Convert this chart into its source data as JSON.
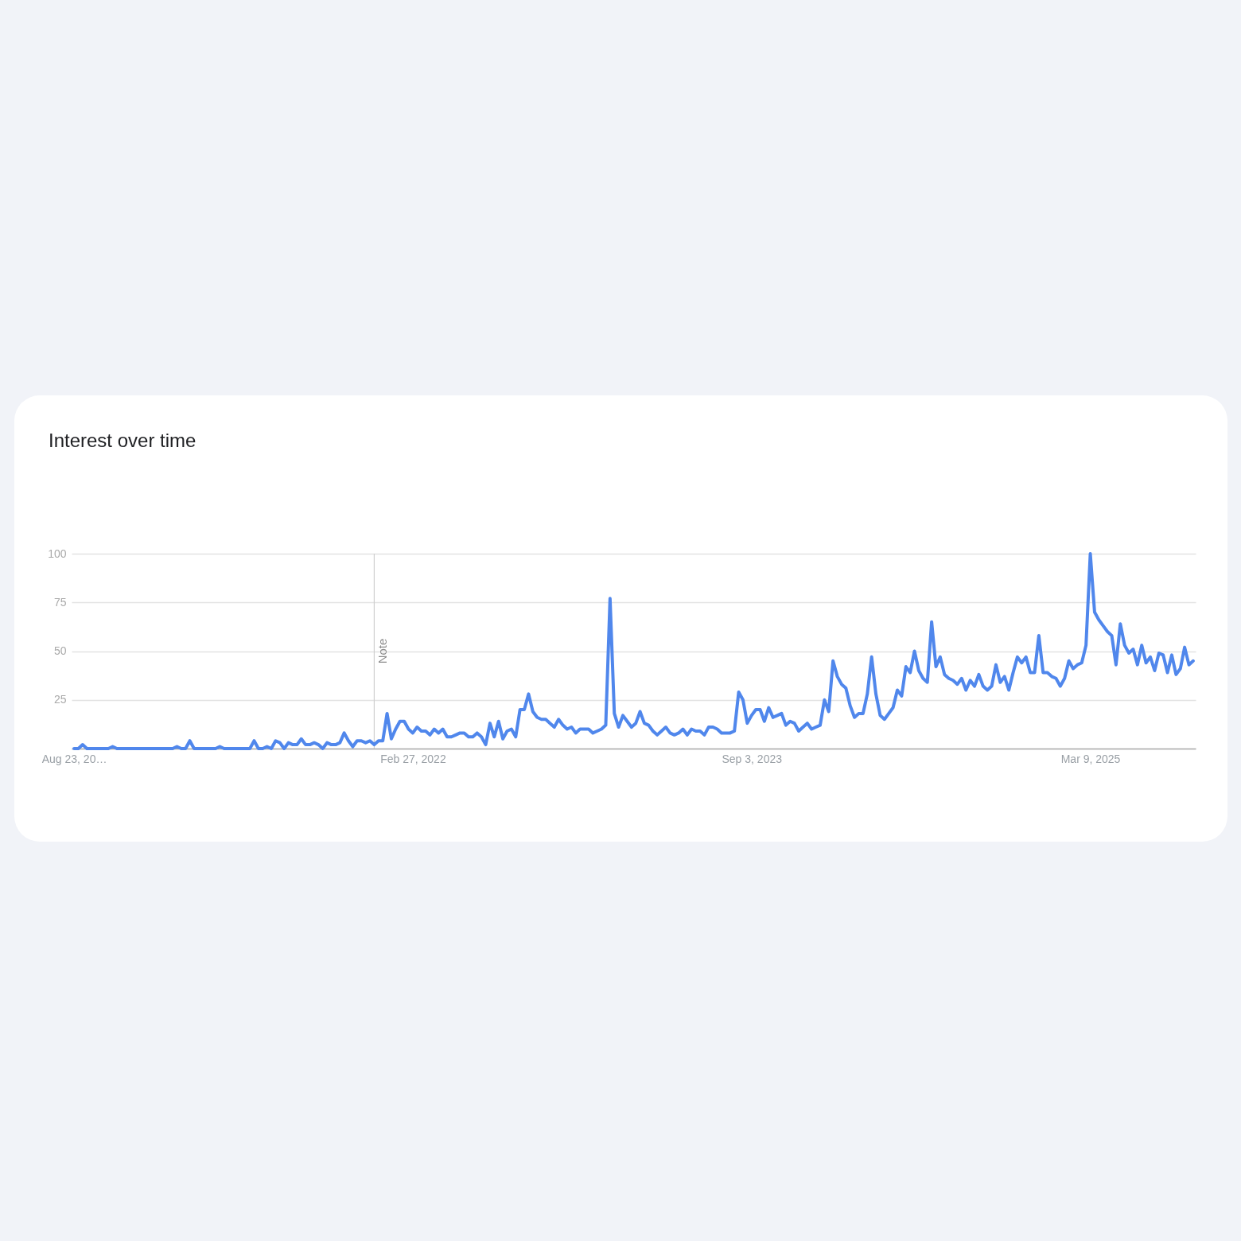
{
  "chart_data": {
    "type": "line",
    "title": "Interest over time",
    "x": [
      "2020-08-23",
      "2020-08-30",
      "2020-09-06",
      "2020-09-13",
      "2020-10-18",
      "2020-10-25",
      "2020-11-01",
      "2021-01-31",
      "2021-02-07",
      "2021-02-14",
      "2021-02-21",
      "2021-02-28",
      "2021-03-07",
      "2021-04-11",
      "2021-04-18",
      "2021-04-25",
      "2021-06-06",
      "2021-06-13",
      "2021-06-20",
      "2021-06-27",
      "2021-07-04",
      "2021-07-11",
      "2021-07-18",
      "2021-07-25",
      "2021-08-01",
      "2021-08-08",
      "2021-08-15",
      "2021-08-22",
      "2021-08-29",
      "2021-09-05",
      "2021-09-12",
      "2021-09-19",
      "2021-09-26",
      "2021-10-03",
      "2021-10-10",
      "2021-10-17",
      "2021-10-24",
      "2021-10-31",
      "2021-11-07",
      "2021-11-14",
      "2021-11-21",
      "2021-11-28",
      "2021-12-05",
      "2021-12-12",
      "2021-12-19",
      "2021-12-26",
      "2022-01-02",
      "2022-01-09",
      "2022-01-16",
      "2022-01-23",
      "2022-01-30",
      "2022-02-06",
      "2022-02-13",
      "2022-02-20",
      "2022-02-27",
      "2022-03-06",
      "2022-03-13",
      "2022-03-20",
      "2022-03-27",
      "2022-04-03",
      "2022-04-10",
      "2022-04-17",
      "2022-04-24",
      "2022-05-01",
      "2022-05-08",
      "2022-05-15",
      "2022-05-22",
      "2022-05-29",
      "2022-06-05",
      "2022-06-12",
      "2022-06-19",
      "2022-06-26",
      "2022-07-03",
      "2022-07-10",
      "2022-07-17",
      "2022-07-24",
      "2022-07-31",
      "2022-08-07",
      "2022-08-14",
      "2022-08-21",
      "2022-08-28",
      "2022-09-04",
      "2022-09-11",
      "2022-09-18",
      "2022-09-25",
      "2022-10-02",
      "2022-10-09",
      "2022-10-16",
      "2022-10-23",
      "2022-10-30",
      "2022-11-06",
      "2022-11-13",
      "2022-11-20",
      "2022-11-27",
      "2022-12-04",
      "2022-12-11",
      "2022-12-18",
      "2022-12-25",
      "2023-01-01",
      "2023-01-08",
      "2023-01-15",
      "2023-01-22",
      "2023-01-29",
      "2023-02-05",
      "2023-02-12",
      "2023-02-19",
      "2023-02-26",
      "2023-03-05",
      "2023-03-12",
      "2023-03-19",
      "2023-03-26",
      "2023-04-02",
      "2023-04-09",
      "2023-04-16",
      "2023-04-23",
      "2023-04-30",
      "2023-05-07",
      "2023-05-14",
      "2023-05-21",
      "2023-05-28",
      "2023-06-04",
      "2023-06-11",
      "2023-06-18",
      "2023-06-25",
      "2023-07-02",
      "2023-07-09",
      "2023-07-16",
      "2023-07-23",
      "2023-07-30",
      "2023-08-06",
      "2023-08-13",
      "2023-08-20",
      "2023-08-27",
      "2023-09-03",
      "2023-09-10",
      "2023-09-17",
      "2023-09-24",
      "2023-10-01",
      "2023-10-08",
      "2023-10-15",
      "2023-10-22",
      "2023-10-29",
      "2023-11-05",
      "2023-11-12",
      "2023-11-19",
      "2023-11-26",
      "2023-12-03",
      "2023-12-10",
      "2023-12-17",
      "2023-12-24",
      "2023-12-31",
      "2024-01-07",
      "2024-01-14",
      "2024-01-21",
      "2024-01-28",
      "2024-02-04",
      "2024-02-11",
      "2024-02-18",
      "2024-02-25",
      "2024-03-03",
      "2024-03-10",
      "2024-03-17",
      "2024-03-24",
      "2024-03-31",
      "2024-04-07",
      "2024-04-14",
      "2024-04-21",
      "2024-04-28",
      "2024-05-05",
      "2024-05-12",
      "2024-05-19",
      "2024-05-26",
      "2024-06-02",
      "2024-06-09",
      "2024-06-16",
      "2024-06-23",
      "2024-06-30",
      "2024-07-07",
      "2024-07-14",
      "2024-07-21",
      "2024-07-28",
      "2024-08-04",
      "2024-08-11",
      "2024-08-18",
      "2024-08-25",
      "2024-09-01",
      "2024-09-08",
      "2024-09-15",
      "2024-09-22",
      "2024-09-29",
      "2024-10-06",
      "2024-10-13",
      "2024-10-20",
      "2024-10-27",
      "2024-11-03",
      "2024-11-10",
      "2024-11-17",
      "2024-11-24",
      "2024-12-01",
      "2024-12-08",
      "2024-12-15",
      "2024-12-22",
      "2024-12-29",
      "2025-01-05",
      "2025-01-12",
      "2025-01-19",
      "2025-01-26",
      "2025-02-02",
      "2025-02-09",
      "2025-02-16",
      "2025-02-23",
      "2025-03-02",
      "2025-03-09",
      "2025-03-16",
      "2025-03-23",
      "2025-03-30",
      "2025-04-06",
      "2025-04-13",
      "2025-04-20",
      "2025-04-27",
      "2025-05-04",
      "2025-05-11",
      "2025-05-18",
      "2025-05-25",
      "2025-06-01",
      "2025-06-08",
      "2025-06-15",
      "2025-06-22",
      "2025-06-29",
      "2025-07-06",
      "2025-07-13",
      "2025-07-20",
      "2025-07-27",
      "2025-08-03",
      "2025-08-10",
      "2025-08-17",
      "2025-08-24"
    ],
    "series": [
      {
        "color": "#5087ec",
        "values": [
          0,
          0,
          2,
          0,
          0,
          1,
          0,
          0,
          1,
          0,
          0,
          4,
          0,
          0,
          1,
          0,
          0,
          4,
          0,
          0,
          1,
          0,
          4,
          3,
          0,
          3,
          2,
          2,
          5,
          2,
          2,
          3,
          2,
          0,
          3,
          2,
          2,
          3,
          8,
          4,
          1,
          4,
          4,
          3,
          4,
          2,
          4,
          4,
          18,
          5,
          10,
          14,
          14,
          10,
          8,
          11,
          9,
          9,
          7,
          10,
          8,
          10,
          6,
          6,
          7,
          8,
          8,
          6,
          6,
          8,
          6,
          2,
          13,
          6,
          14,
          5,
          9,
          10,
          6,
          20,
          20,
          28,
          19,
          16,
          15,
          15,
          13,
          11,
          15,
          12,
          10,
          11,
          8,
          10,
          10,
          10,
          8,
          9,
          10,
          12,
          77,
          18,
          11,
          17,
          14,
          11,
          13,
          19,
          13,
          12,
          9,
          7,
          9,
          11,
          8,
          7,
          8,
          10,
          7,
          10,
          9,
          9,
          7,
          11,
          11,
          10,
          8,
          8,
          8,
          9,
          29,
          25,
          13,
          17,
          20,
          20,
          14,
          21,
          16,
          17,
          18,
          12,
          14,
          13,
          9,
          11,
          13,
          10,
          11,
          12,
          25,
          19,
          45,
          37,
          33,
          31,
          22,
          16,
          18,
          18,
          28,
          47,
          28,
          17,
          15,
          18,
          21,
          30,
          27,
          42,
          39,
          50,
          40,
          36,
          34,
          65,
          42,
          47,
          38,
          36,
          35,
          33,
          36,
          30,
          35,
          32,
          38,
          32,
          30,
          32,
          43,
          34,
          37,
          30,
          39,
          47,
          44,
          47,
          39,
          39,
          58,
          39,
          39,
          37,
          36,
          32,
          36,
          45,
          41,
          43,
          44,
          53,
          100,
          70,
          66,
          63,
          60,
          58,
          43,
          64,
          53,
          49,
          51,
          43,
          53,
          44,
          47,
          40,
          49,
          48,
          39,
          48,
          38,
          41,
          52,
          43,
          45
        ]
      }
    ],
    "xlim": [
      "2020-08-19",
      "2025-08-28"
    ],
    "xticks": [
      {
        "value": "2020-08-23",
        "label": "Aug 23, 20…"
      },
      {
        "value": "2022-02-27",
        "label": "Feb 27, 2022"
      },
      {
        "value": "2023-09-03",
        "label": "Sep 3, 2023"
      },
      {
        "value": "2025-03-09",
        "label": "Mar 9, 2025"
      }
    ],
    "ylim": [
      0,
      100
    ],
    "yticks": [
      25,
      50,
      75,
      100
    ],
    "grid": "y",
    "ref_lines": [
      {
        "axis": "x",
        "value": "2021-12-26",
        "label": "Note",
        "color": "#cfcfcf"
      }
    ]
  }
}
